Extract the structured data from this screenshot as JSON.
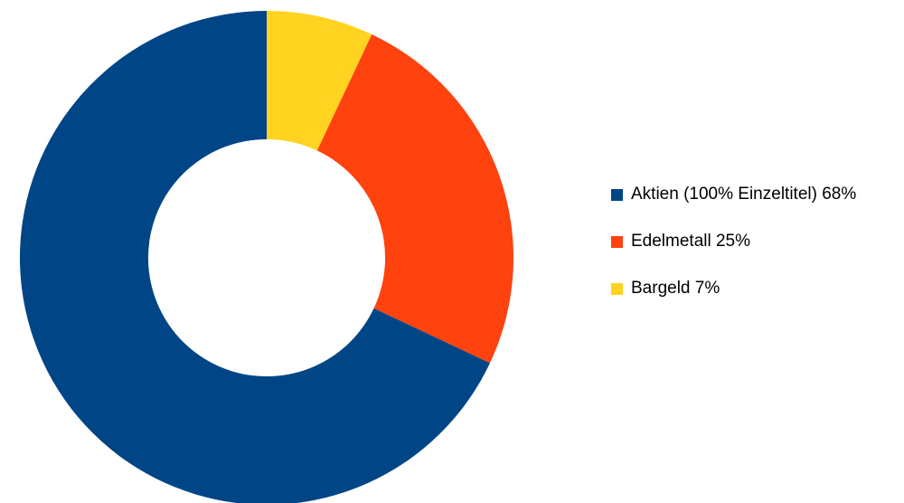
{
  "chart_data": {
    "type": "pie",
    "subtype": "donut",
    "title": "",
    "categories": [
      "Aktien (100% Einzeltitel)",
      "Edelmetall",
      "Bargeld"
    ],
    "values": [
      68,
      25,
      7
    ],
    "unit": "%",
    "colors": [
      "#004586",
      "#ff420e",
      "#ffd320"
    ],
    "legend": [
      {
        "label": "Aktien (100% Einzeltitel) 68%",
        "color": "#004586"
      },
      {
        "label": "Edelmetall 25%",
        "color": "#ff420e"
      },
      {
        "label": "Bargeld 7%",
        "color": "#ffd320"
      }
    ],
    "legend_position": "right",
    "start_angle_deg": 90,
    "direction": "counterclockwise",
    "inner_radius_ratio": 0.48,
    "background": "#ffffff"
  }
}
